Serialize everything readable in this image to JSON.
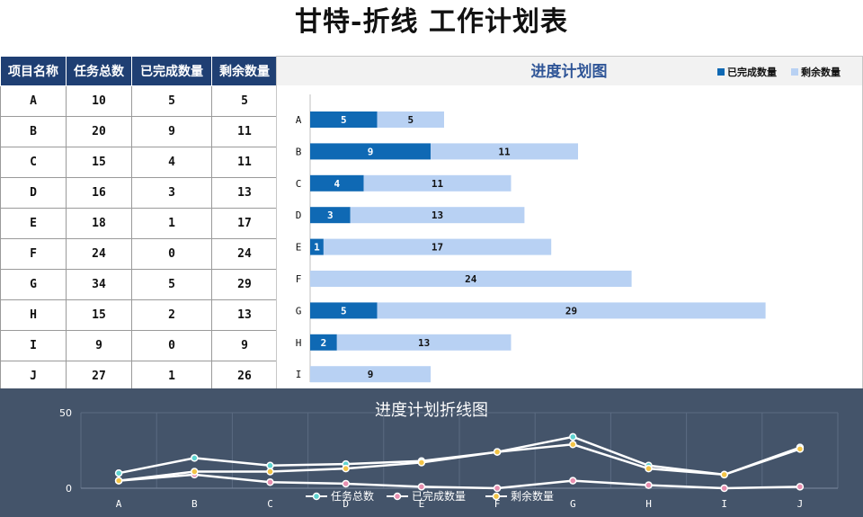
{
  "page": {
    "title": "甘特-折线 工作计划表"
  },
  "table": {
    "headers": [
      "项目名称",
      "任务总数",
      "已完成数量",
      "剩余数量"
    ],
    "rows": [
      [
        "A",
        "10",
        "5",
        "5"
      ],
      [
        "B",
        "20",
        "9",
        "11"
      ],
      [
        "C",
        "15",
        "4",
        "11"
      ],
      [
        "D",
        "16",
        "3",
        "13"
      ],
      [
        "E",
        "18",
        "1",
        "17"
      ],
      [
        "F",
        "24",
        "0",
        "24"
      ],
      [
        "G",
        "34",
        "5",
        "29"
      ],
      [
        "H",
        "15",
        "2",
        "13"
      ],
      [
        "I",
        "9",
        "0",
        "9"
      ],
      [
        "J",
        "27",
        "1",
        "26"
      ]
    ]
  },
  "chart_data": [
    {
      "type": "bar",
      "orientation": "horizontal",
      "stacked": true,
      "title": "进度计划图",
      "categories": [
        "A",
        "B",
        "C",
        "D",
        "E",
        "F",
        "G",
        "H",
        "I"
      ],
      "series": [
        {
          "name": "已完成数量",
          "values": [
            5,
            9,
            4,
            3,
            1,
            0,
            5,
            2,
            0
          ],
          "color": "#0f69b4"
        },
        {
          "name": "剩余数量",
          "values": [
            5,
            11,
            11,
            13,
            17,
            24,
            29,
            13,
            9
          ],
          "color": "#b8d1f3"
        }
      ],
      "legend_position": "top-right",
      "grid": false
    },
    {
      "type": "line",
      "title": "进度计划折线图",
      "categories": [
        "A",
        "B",
        "C",
        "D",
        "E",
        "F",
        "G",
        "H",
        "I",
        "J"
      ],
      "ylim": [
        0,
        50
      ],
      "yticks": [
        "50",
        "0"
      ],
      "series": [
        {
          "name": "任务总数",
          "values": [
            10,
            20,
            15,
            16,
            18,
            24,
            34,
            15,
            9,
            27
          ],
          "color": "#5fd3d0"
        },
        {
          "name": "已完成数量",
          "values": [
            5,
            9,
            4,
            3,
            1,
            0,
            5,
            2,
            0,
            1
          ],
          "color": "#e88fb0"
        },
        {
          "name": "剩余数量",
          "values": [
            5,
            11,
            11,
            13,
            17,
            24,
            29,
            13,
            9,
            26
          ],
          "color": "#f3c447"
        }
      ],
      "legend_position": "bottom",
      "background": "#44546a",
      "grid": true
    }
  ]
}
